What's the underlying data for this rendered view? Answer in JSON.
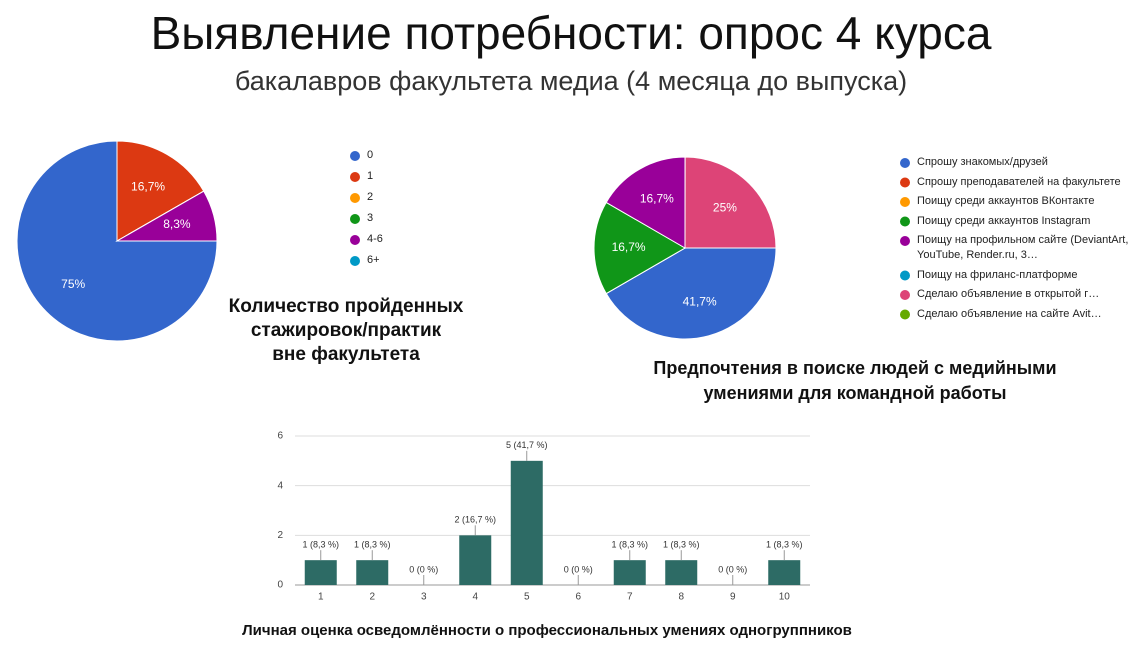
{
  "header": {
    "title": "Выявление потребности: опрос 4 курса",
    "subtitle": "бакалавров факультета медиа (4 месяца до выпуска)"
  },
  "chart_data": [
    {
      "type": "pie",
      "title": [
        "Количество пройденных",
        "стажировок/практик",
        "вне факультета"
      ],
      "categories": [
        "0",
        "1",
        "2",
        "3",
        "4-6",
        "6+"
      ],
      "values": [
        75,
        16.7,
        0,
        0,
        8.3,
        0
      ],
      "value_labels": [
        "75%",
        "16,7%",
        null,
        null,
        "8,3%",
        null
      ],
      "colors": [
        "#3366cc",
        "#dc3912",
        "#ff9900",
        "#109618",
        "#990099",
        "#0099c6"
      ]
    },
    {
      "type": "pie",
      "title": [
        "Предпочтения в поиске людей с медийными",
        "умениями для командной работы"
      ],
      "categories": [
        "Спрошу знакомых/друзей",
        "Спрошу преподавателей на факультете",
        "Поищу среди аккаунтов ВКонтакте",
        "Поищу среди аккаунтов Instagram",
        "Поищу на профильном сайте (DeviantArt, YouTube, Render.ru, 3…",
        "Поищу на фриланс-платформе",
        "Сделаю объявление в открытой г…",
        "Сделаю объявление на сайте Avit…"
      ],
      "values": [
        41.7,
        0,
        0,
        16.7,
        16.7,
        0,
        25,
        0
      ],
      "value_labels": [
        "41,7%",
        null,
        null,
        "16,7%",
        "16,7%",
        null,
        "25%",
        null
      ],
      "colors": [
        "#3366cc",
        "#dc3912",
        "#ff9900",
        "#109618",
        "#990099",
        "#0099c6",
        "#dd4477",
        "#66aa00"
      ]
    },
    {
      "type": "bar",
      "title": "Личная оценка осведомлённости о профессиональных умениях одногруппников",
      "categories": [
        "1",
        "2",
        "3",
        "4",
        "5",
        "6",
        "7",
        "8",
        "9",
        "10"
      ],
      "values": [
        1,
        1,
        0,
        2,
        5,
        0,
        1,
        1,
        0,
        1
      ],
      "value_labels": [
        "1 (8,3 %)",
        "1 (8,3 %)",
        "0 (0 %)",
        "2 (16,7 %)",
        "5 (41,7 %)",
        "0 (0 %)",
        "1 (8,3 %)",
        "1 (8,3 %)",
        "0 (0 %)",
        "1 (8,3 %)"
      ],
      "color": "#2d6b65",
      "ylim": [
        0,
        6
      ],
      "yticks": [
        0,
        2,
        4,
        6
      ],
      "grid": true
    }
  ]
}
